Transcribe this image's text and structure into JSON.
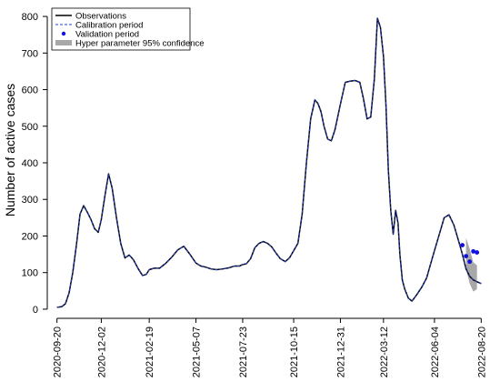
{
  "chart_data": {
    "type": "line",
    "title": "",
    "xlabel": "",
    "ylabel": "Number of active cases",
    "ylim": [
      -25,
      830
    ],
    "xlim": [
      "2020-09-04",
      "2022-09-02"
    ],
    "grid": false,
    "legend_position": "top-left",
    "yticks": [
      0,
      100,
      200,
      300,
      400,
      500,
      600,
      700,
      800
    ],
    "xticks": [
      "2020-09-20",
      "2020-12-02",
      "2021-02-19",
      "2021-05-07",
      "2021-07-23",
      "2021-10-15",
      "2021-12-31",
      "2022-03-12",
      "2022-06-04",
      "2022-08-20"
    ],
    "legend": [
      {
        "label": "Observations",
        "style": "solid-line"
      },
      {
        "label": "Calibration period",
        "style": "dashed-line"
      },
      {
        "label": "Validation period",
        "style": "points"
      },
      {
        "label": "Hyper parameter 95% confidence",
        "style": "band"
      }
    ],
    "colors": {
      "observations": "#000000",
      "calibration": "#1f3fd6",
      "validation": "#1010e0",
      "band": "#a8a8a8"
    },
    "series": [
      {
        "name": "Observations",
        "x": [
          "2020-09-20",
          "2020-09-28",
          "2020-10-04",
          "2020-10-10",
          "2020-10-16",
          "2020-10-22",
          "2020-10-28",
          "2020-11-03",
          "2020-11-09",
          "2020-11-15",
          "2020-11-21",
          "2020-11-27",
          "2020-12-02",
          "2020-12-08",
          "2020-12-14",
          "2020-12-20",
          "2020-12-27",
          "2021-01-03",
          "2021-01-10",
          "2021-01-17",
          "2021-01-24",
          "2021-02-01",
          "2021-02-08",
          "2021-02-14",
          "2021-02-19",
          "2021-02-27",
          "2021-03-08",
          "2021-03-18",
          "2021-03-28",
          "2021-04-07",
          "2021-04-17",
          "2021-04-27",
          "2021-05-07",
          "2021-05-15",
          "2021-05-23",
          "2021-06-01",
          "2021-06-10",
          "2021-06-20",
          "2021-06-30",
          "2021-07-10",
          "2021-07-18",
          "2021-07-23",
          "2021-07-29",
          "2021-08-05",
          "2021-08-12",
          "2021-08-19",
          "2021-08-26",
          "2021-09-02",
          "2021-09-09",
          "2021-09-16",
          "2021-09-23",
          "2021-10-01",
          "2021-10-08",
          "2021-10-15",
          "2021-10-22",
          "2021-10-29",
          "2021-11-05",
          "2021-11-12",
          "2021-11-19",
          "2021-11-24",
          "2021-11-29",
          "2021-12-04",
          "2021-12-10",
          "2021-12-16",
          "2021-12-22",
          "2021-12-31",
          "2022-01-08",
          "2022-01-16",
          "2022-01-24",
          "2022-02-01",
          "2022-02-07",
          "2022-02-13",
          "2022-02-19",
          "2022-02-25",
          "2022-03-02",
          "2022-03-07",
          "2022-03-12",
          "2022-03-16",
          "2022-03-20",
          "2022-03-24",
          "2022-03-28",
          "2022-04-01",
          "2022-04-05",
          "2022-04-08",
          "2022-04-12",
          "2022-04-16",
          "2022-04-22",
          "2022-04-28",
          "2022-05-06",
          "2022-05-14",
          "2022-05-22",
          "2022-05-28",
          "2022-06-04",
          "2022-06-12",
          "2022-06-20",
          "2022-06-28",
          "2022-07-06",
          "2022-07-14",
          "2022-07-20",
          "2022-07-26",
          "2022-08-01",
          "2022-08-07",
          "2022-08-13",
          "2022-08-20"
        ],
        "y": [
          5,
          7,
          15,
          45,
          100,
          175,
          260,
          283,
          265,
          245,
          220,
          210,
          245,
          310,
          370,
          330,
          250,
          180,
          140,
          148,
          135,
          110,
          92,
          95,
          108,
          112,
          112,
          125,
          142,
          162,
          172,
          150,
          126,
          118,
          115,
          110,
          108,
          110,
          113,
          118,
          118,
          122,
          124,
          138,
          168,
          180,
          185,
          180,
          170,
          153,
          138,
          130,
          140,
          160,
          180,
          260,
          400,
          520,
          572,
          562,
          540,
          500,
          465,
          460,
          490,
          560,
          620,
          623,
          625,
          620,
          575,
          520,
          525,
          630,
          795,
          770,
          690,
          560,
          380,
          270,
          205,
          270,
          235,
          150,
          80,
          55,
          30,
          22,
          40,
          60,
          85,
          120,
          160,
          205,
          250,
          258,
          230,
          185,
          150,
          110,
          90,
          80,
          75,
          70
        ]
      },
      {
        "name": "Validation period",
        "x": [
          "2022-07-20",
          "2022-07-26",
          "2022-08-01",
          "2022-08-07",
          "2022-08-13"
        ],
        "y": [
          175,
          145,
          130,
          158,
          155
        ]
      }
    ],
    "confidence_band": {
      "x": [
        "2022-07-26",
        "2022-08-01",
        "2022-08-07",
        "2022-08-13"
      ],
      "lower": [
        110,
        70,
        48,
        55
      ],
      "upper": [
        195,
        165,
        128,
        120
      ]
    }
  }
}
